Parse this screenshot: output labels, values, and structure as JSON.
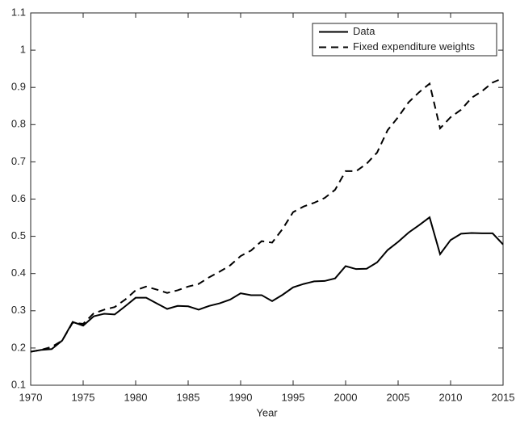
{
  "chart_data": {
    "type": "line",
    "xlabel": "Year",
    "x": [
      1970,
      1971,
      1972,
      1973,
      1974,
      1975,
      1976,
      1977,
      1978,
      1979,
      1980,
      1981,
      1982,
      1983,
      1984,
      1985,
      1986,
      1987,
      1988,
      1989,
      1990,
      1991,
      1992,
      1993,
      1994,
      1995,
      1996,
      1997,
      1998,
      1999,
      2000,
      2001,
      2002,
      2003,
      2004,
      2005,
      2006,
      2007,
      2008,
      2009,
      2010,
      2011,
      2012,
      2013,
      2014,
      2015
    ],
    "series": [
      {
        "name": "Data",
        "color": "#000000",
        "dash": "solid",
        "values": [
          0.19,
          0.195,
          0.197,
          0.22,
          0.27,
          0.26,
          0.285,
          0.292,
          0.29,
          0.312,
          0.335,
          0.335,
          0.32,
          0.305,
          0.313,
          0.312,
          0.303,
          0.313,
          0.32,
          0.33,
          0.347,
          0.342,
          0.342,
          0.326,
          0.343,
          0.363,
          0.372,
          0.379,
          0.38,
          0.387,
          0.42,
          0.412,
          0.413,
          0.43,
          0.463,
          0.485,
          0.51,
          0.53,
          0.551,
          0.452,
          0.49,
          0.507,
          0.509,
          0.508,
          0.508,
          0.478
        ]
      },
      {
        "name": "Fixed expenditure weights",
        "color": "#000000",
        "dash": "dashed",
        "values": [
          0.19,
          0.195,
          0.203,
          0.22,
          0.268,
          0.265,
          0.293,
          0.303,
          0.31,
          0.33,
          0.355,
          0.365,
          0.357,
          0.348,
          0.355,
          0.365,
          0.372,
          0.39,
          0.405,
          0.422,
          0.447,
          0.462,
          0.487,
          0.483,
          0.52,
          0.565,
          0.58,
          0.59,
          0.603,
          0.625,
          0.675,
          0.675,
          0.695,
          0.725,
          0.785,
          0.82,
          0.86,
          0.887,
          0.91,
          0.79,
          0.82,
          0.84,
          0.872,
          0.89,
          0.913,
          0.925
        ]
      }
    ],
    "xlim": [
      1970,
      2015
    ],
    "xticks": [
      1970,
      1975,
      1980,
      1985,
      1990,
      1995,
      2000,
      2005,
      2010,
      2015
    ],
    "ylim": [
      0.1,
      1.1
    ],
    "yticks": [
      0.1,
      0.2,
      0.3,
      0.4,
      0.5,
      0.6,
      0.7,
      0.8,
      0.9,
      1,
      1.1
    ],
    "legend": "upper-right"
  }
}
